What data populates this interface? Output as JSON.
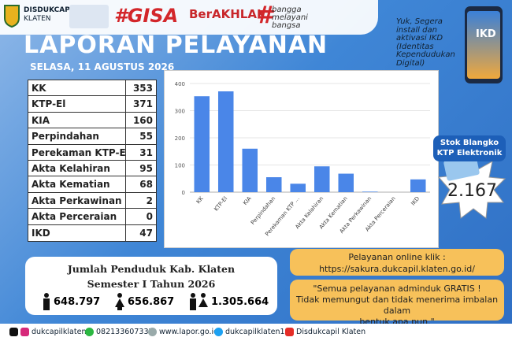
{
  "header": {
    "org": "DISDUKCAPIL",
    "org_sub": "KLATEN",
    "gisa": "#GISA",
    "berakhlak": "BerAKHLAK",
    "hash": "#",
    "bangga": [
      "bangga",
      "melayani",
      "bangsa"
    ]
  },
  "title": "LAPORAN PELAYANAN",
  "date": "SELASA, 11 AGUSTUS 2026",
  "table": {
    "rows": [
      [
        "KK",
        353
      ],
      [
        "KTP-El",
        371
      ],
      [
        "KIA",
        160
      ],
      [
        "Perpindahan",
        55
      ],
      [
        "Perekaman KTP-El",
        31
      ],
      [
        "Akta Kelahiran",
        95
      ],
      [
        "Akta Kematian",
        68
      ],
      [
        "Akta Perkawinan",
        2
      ],
      [
        "Akta Perceraian",
        0
      ],
      [
        "IKD",
        47
      ]
    ]
  },
  "chart_data": {
    "type": "bar",
    "categories": [
      "KK",
      "KTP-El",
      "KIA",
      "Perpindahan",
      "Perekaman KTP ...",
      "Akta Kelahiran",
      "Akta Kematian",
      "Akta Perkawinan",
      "Akta Perceraian",
      "IKD"
    ],
    "values": [
      353,
      371,
      160,
      55,
      31,
      95,
      68,
      2,
      0,
      47
    ],
    "color": "#4a86e8",
    "ylim": [
      0,
      400
    ],
    "yticks": [
      0,
      100,
      200,
      300,
      400
    ],
    "grid": true
  },
  "promo": {
    "text": [
      "Yuk, Segera",
      "install dan",
      "aktivasi IKD",
      "(Identitas",
      "Kependudukan",
      "Digital)"
    ],
    "phone_label": "IKD"
  },
  "stock": {
    "label": [
      "Stok Blangko",
      "KTP Elektronik"
    ],
    "value": "2.167"
  },
  "population": {
    "title": "Jumlah Penduduk Kab. Klaten",
    "period": "Semester I Tahun 2026",
    "male": "648.797",
    "female": "656.867",
    "total": "1.305.664"
  },
  "online": {
    "label": "Pelayanan online klik :",
    "url": "https://sakura.dukcapil.klaten.go.id/"
  },
  "quote": [
    "\"Semua pelayanan adminduk GRATIS !",
    "Tidak memungut dan tidak menerima imbalan dalam",
    "bentuk apa pun.\""
  ],
  "footer": [
    "dukcapilklaten",
    "082133607337",
    "www.lapor.go.id",
    "dukcapilklaten1",
    "Disdukcapil Klaten"
  ]
}
